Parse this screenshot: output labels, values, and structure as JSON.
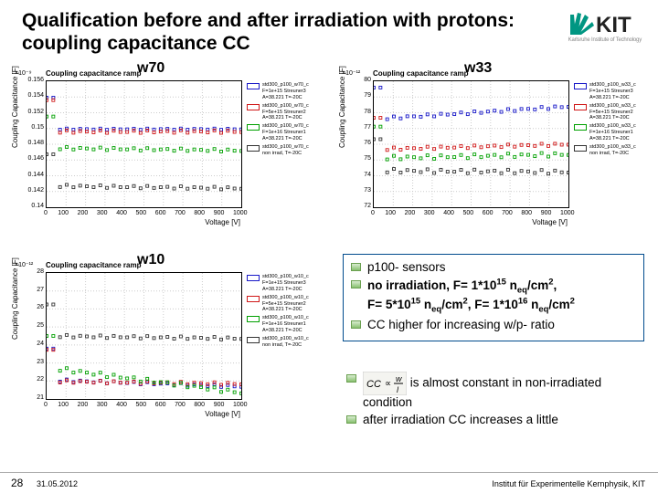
{
  "title_text": "Qualification before and after irradiation with protons: coupling capacitance CC",
  "logo": {
    "text": "KIT",
    "subtitle": "Karlsruhe Institute of Technology",
    "fan_color": "#009682",
    "text_color": "#222222"
  },
  "colors": {
    "series": [
      "#1818c8",
      "#d01818",
      "#00a000",
      "#333333"
    ],
    "grid": "#cccccc",
    "axis": "#000000"
  },
  "charts": {
    "common": {
      "inner_title": "Coupling capacitance ramp",
      "xlabel": "Voltage [V]",
      "ylabel": "Coupling Capacitance [F]",
      "xlim": [
        0,
        1000
      ],
      "xticks": [
        0,
        100,
        200,
        300,
        400,
        500,
        600,
        700,
        800,
        900,
        1000
      ],
      "legend_suffixes": [
        "A=38.221 T=-20C",
        "non irrad, T=-20C"
      ],
      "legend_template": "std300_p100_w{W}_c F={F} Streuner{N}"
    },
    "w70": {
      "label": "w70",
      "y_exp": "×10⁻⁹",
      "yticks": [
        "0.14",
        "0.142",
        "0.144",
        "0.146",
        "0.148",
        "0.15",
        "0.152",
        "0.154",
        "0.156"
      ],
      "series": [
        {
          "color": "#1818c8",
          "y0": 0.62,
          "slope": -0.0,
          "noise": 0.01,
          "F": "1e+15",
          "N": "3"
        },
        {
          "color": "#d01818",
          "y0": 0.6,
          "slope": 0.0,
          "noise": 0.02,
          "F": "5e+15",
          "N": "2"
        },
        {
          "color": "#00a000",
          "y0": 0.45,
          "slope": 0.02,
          "noise": 0.02,
          "F": "1e+16",
          "N": "1"
        },
        {
          "color": "#333333",
          "y0": 0.15,
          "slope": 0.02,
          "noise": 0.02,
          "F": "non",
          "N": ""
        }
      ]
    },
    "w33": {
      "label": "w33",
      "y_exp": "×10⁻¹²",
      "yticks": [
        "72",
        "73",
        "74",
        "75",
        "76",
        "77",
        "78",
        "79",
        "80"
      ],
      "series": [
        {
          "color": "#1818c8",
          "y0": 0.8,
          "slope": -0.1,
          "noise": 0.02,
          "F": "1e+15",
          "N": "3"
        },
        {
          "color": "#d01818",
          "y0": 0.5,
          "slope": -0.04,
          "noise": 0.02,
          "F": "5e+15",
          "N": "2"
        },
        {
          "color": "#00a000",
          "y0": 0.42,
          "slope": -0.03,
          "noise": 0.03,
          "F": "1e+16",
          "N": "1"
        },
        {
          "color": "#333333",
          "y0": 0.28,
          "slope": 0.01,
          "noise": 0.03,
          "F": "non",
          "N": ""
        }
      ]
    },
    "w10": {
      "label": "w10",
      "y_exp": "×10⁻¹²",
      "yticks": [
        "21",
        "22",
        "23",
        "24",
        "25",
        "26",
        "27",
        "28"
      ],
      "series": [
        {
          "color": "#1818c8",
          "y0": 0.1,
          "slope": 0.05,
          "noise": 0.02,
          "F": "1e+15",
          "N": "3"
        },
        {
          "color": "#d01818",
          "y0": 0.12,
          "slope": 0.02,
          "noise": 0.02,
          "F": "5e+15",
          "N": "2"
        },
        {
          "color": "#00a000",
          "y0": 0.05,
          "slope": 0.2,
          "noise": 0.03,
          "F": "1e+16",
          "N": "1"
        },
        {
          "color": "#333333",
          "y0": 0.48,
          "slope": 0.02,
          "noise": 0.02,
          "F": "non",
          "N": ""
        }
      ]
    }
  },
  "bullets1": [
    "p100- sensors",
    "no irradiation, F= 1*10<sup>15</sup> n<sub>eq</sub>/cm<sup>2</sup>, F= 5*10<sup>15</sup> n<sub>eq</sub>/cm<sup>2</sup>, F= 1*10<sup>16</sup> n<sub>eq</sub>/cm<sup>2</sup>",
    "CC higher for increasing w/p- ratio"
  ],
  "bullets2_prefix_eq": {
    "lhs": "CC",
    "rhs_top": "w",
    "rhs_bot": "l"
  },
  "bullets2": [
    " is almost constant in non-irradiated condition",
    "after irradiation CC increases a little"
  ],
  "footer": {
    "page": "28",
    "date": "31.05.2012",
    "institute": "Institut für Experimentelle Kernphysik, KIT"
  }
}
